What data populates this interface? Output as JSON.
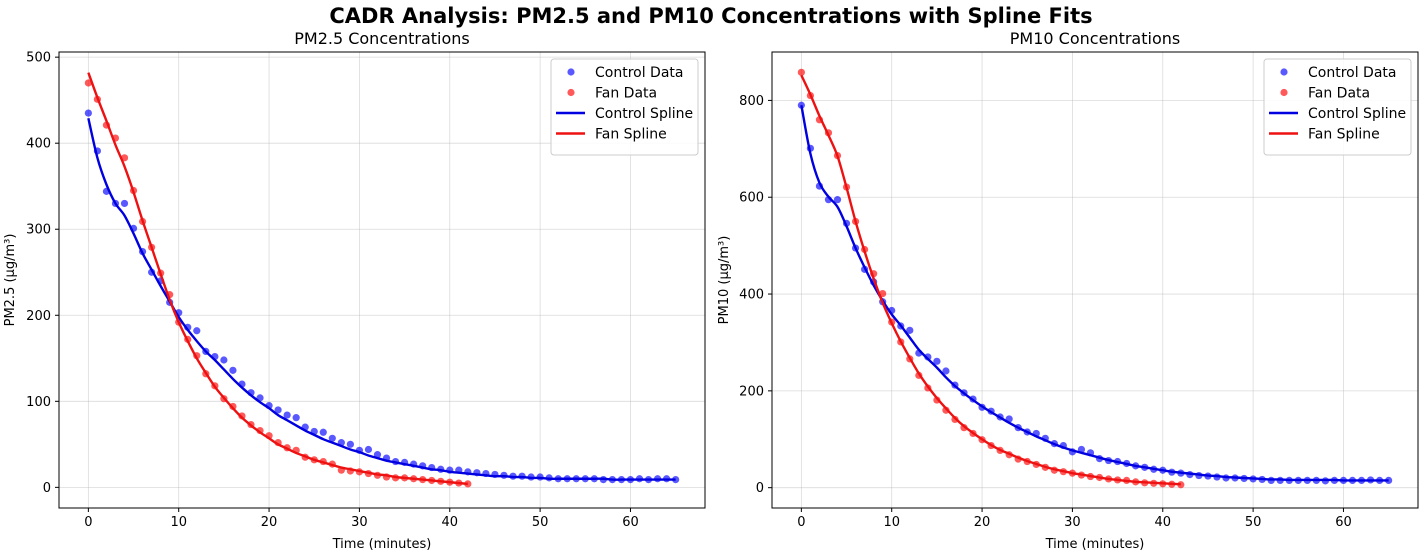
{
  "figure": {
    "suptitle": "CADR Analysis: PM2.5 and PM10 Concentrations with Spline Fits"
  },
  "colors": {
    "control": "#0000ff",
    "fan": "#ff0000",
    "control_line": "#0000e0",
    "fan_line": "#ee1111"
  },
  "chart_data": [
    {
      "type": "scatter",
      "title": "PM2.5 Concentrations",
      "xlabel": "Time (minutes)",
      "ylabel": "PM2.5 (µg/m³)",
      "xlim": [
        -3.25,
        68.25
      ],
      "ylim": [
        -24,
        506
      ],
      "xticks": [
        0,
        10,
        20,
        30,
        40,
        50,
        60
      ],
      "yticks": [
        0,
        100,
        200,
        300,
        400,
        500
      ],
      "grid": true,
      "legend_position": "upper right",
      "legend": [
        "Control Data",
        "Fan Data",
        "Control Spline",
        "Fan Spline"
      ],
      "series": [
        {
          "name": "Control Data",
          "kind": "scatter",
          "color_key": "control",
          "x": [
            0,
            1,
            2,
            3,
            4,
            5,
            6,
            7,
            8,
            9,
            10,
            11,
            12,
            13,
            14,
            15,
            16,
            17,
            18,
            19,
            20,
            21,
            22,
            23,
            24,
            25,
            26,
            27,
            28,
            29,
            30,
            31,
            32,
            33,
            34,
            35,
            36,
            37,
            38,
            39,
            40,
            41,
            42,
            43,
            44,
            45,
            46,
            47,
            48,
            49,
            50,
            51,
            52,
            53,
            54,
            55,
            56,
            57,
            58,
            59,
            60,
            61,
            62,
            63,
            64,
            65
          ],
          "y": [
            435,
            391,
            344,
            330,
            330,
            301,
            274,
            250,
            240,
            215,
            203,
            186,
            182,
            158,
            152,
            148,
            136,
            120,
            110,
            104,
            95,
            90,
            84,
            81,
            70,
            65,
            64,
            57,
            52,
            50,
            43,
            44,
            38,
            34,
            30,
            29,
            27,
            25,
            23,
            21,
            20,
            20,
            18,
            17,
            16,
            15,
            14,
            13,
            13,
            12,
            12,
            11,
            10,
            10,
            10,
            10,
            10,
            9,
            9,
            9,
            9,
            10,
            9,
            10,
            10,
            9
          ]
        },
        {
          "name": "Fan Data",
          "kind": "scatter",
          "color_key": "fan",
          "x": [
            0,
            1,
            2,
            3,
            4,
            5,
            6,
            7,
            8,
            9,
            10,
            11,
            12,
            13,
            14,
            15,
            16,
            17,
            18,
            19,
            20,
            21,
            22,
            23,
            24,
            25,
            26,
            27,
            28,
            29,
            30,
            31,
            32,
            33,
            34,
            35,
            36,
            37,
            38,
            39,
            40,
            41,
            42
          ],
          "y": [
            470,
            451,
            421,
            406,
            383,
            345,
            309,
            279,
            249,
            224,
            192,
            172,
            153,
            132,
            118,
            103,
            94,
            83,
            73,
            66,
            60,
            52,
            46,
            43,
            35,
            32,
            30,
            27,
            20,
            19,
            18,
            16,
            14,
            12,
            11,
            11,
            10,
            9,
            8,
            7,
            6,
            5,
            4
          ]
        },
        {
          "name": "Control Spline",
          "kind": "line",
          "color_key": "control_line",
          "x": [
            0,
            1,
            2,
            3,
            4,
            5,
            6,
            7,
            8,
            9,
            10,
            11,
            12,
            13,
            14,
            15,
            16,
            17,
            18,
            19,
            20,
            21,
            22,
            23,
            24,
            25,
            26,
            27,
            28,
            29,
            30,
            31,
            32,
            33,
            34,
            35,
            36,
            37,
            38,
            39,
            40,
            41,
            42,
            43,
            44,
            45,
            46,
            47,
            48,
            49,
            50,
            51,
            52,
            53,
            54,
            55,
            56,
            57,
            58,
            59,
            60,
            61,
            62,
            63,
            64,
            65
          ],
          "y": [
            429,
            383,
            352,
            330,
            316,
            295,
            272,
            253,
            234,
            216,
            198,
            183,
            170,
            158,
            148,
            137,
            126,
            116,
            107,
            99,
            92,
            84,
            78,
            72,
            66,
            61,
            56,
            52,
            48,
            44,
            41,
            37,
            34,
            31,
            29,
            27,
            25,
            23,
            21,
            20,
            18,
            17,
            16,
            15,
            14,
            13,
            13,
            12,
            12,
            11,
            11,
            10,
            10,
            10,
            10,
            10,
            10,
            10,
            9,
            9,
            9,
            9,
            9,
            9,
            9,
            9
          ]
        },
        {
          "name": "Fan Spline",
          "kind": "line",
          "color_key": "fan_line",
          "x": [
            0,
            1,
            2,
            3,
            4,
            5,
            6,
            7,
            8,
            9,
            10,
            11,
            12,
            13,
            14,
            15,
            16,
            17,
            18,
            19,
            20,
            21,
            22,
            23,
            24,
            25,
            26,
            27,
            28,
            29,
            30,
            31,
            32,
            33,
            34,
            35,
            36,
            37,
            38,
            39,
            40,
            41,
            42
          ],
          "y": [
            482,
            453,
            426,
            398,
            373,
            343,
            310,
            279,
            248,
            218,
            192,
            170,
            150,
            133,
            117,
            104,
            92,
            81,
            72,
            64,
            57,
            50,
            45,
            40,
            36,
            32,
            29,
            26,
            23,
            21,
            19,
            17,
            15,
            14,
            12,
            11,
            10,
            9,
            8,
            7,
            6,
            5,
            4
          ]
        }
      ]
    },
    {
      "type": "scatter",
      "title": "PM10 Concentrations",
      "xlabel": "Time (minutes)",
      "ylabel": "PM10 (µg/m³)",
      "xlim": [
        -3.25,
        68.25
      ],
      "ylim": [
        -42,
        900
      ],
      "xticks": [
        0,
        10,
        20,
        30,
        40,
        50,
        60
      ],
      "yticks": [
        0,
        200,
        400,
        600,
        800
      ],
      "grid": true,
      "legend_position": "upper right",
      "legend": [
        "Control Data",
        "Fan Data",
        "Control Spline",
        "Fan Spline"
      ],
      "series": [
        {
          "name": "Control Data",
          "kind": "scatter",
          "color_key": "control",
          "x": [
            0,
            1,
            2,
            3,
            4,
            5,
            6,
            7,
            8,
            9,
            10,
            11,
            12,
            13,
            14,
            15,
            16,
            17,
            18,
            19,
            20,
            21,
            22,
            23,
            24,
            25,
            26,
            27,
            28,
            29,
            30,
            31,
            32,
            33,
            34,
            35,
            36,
            37,
            38,
            39,
            40,
            41,
            42,
            43,
            44,
            45,
            46,
            47,
            48,
            49,
            50,
            51,
            52,
            53,
            54,
            55,
            56,
            57,
            58,
            59,
            60,
            61,
            62,
            63,
            64,
            65
          ],
          "y": [
            790,
            701,
            623,
            595,
            595,
            546,
            495,
            451,
            425,
            384,
            366,
            334,
            325,
            278,
            270,
            261,
            241,
            212,
            196,
            183,
            166,
            158,
            146,
            142,
            124,
            115,
            112,
            102,
            91,
            87,
            74,
            79,
            72,
            60,
            56,
            54,
            50,
            45,
            42,
            38,
            36,
            32,
            30,
            27,
            25,
            24,
            22,
            20,
            20,
            19,
            18,
            17,
            15,
            15,
            15,
            15,
            15,
            15,
            14,
            15,
            15,
            15,
            15,
            16,
            15,
            15
          ]
        },
        {
          "name": "Fan Data",
          "kind": "scatter",
          "color_key": "fan",
          "x": [
            0,
            1,
            2,
            3,
            4,
            5,
            6,
            7,
            8,
            9,
            10,
            11,
            12,
            13,
            14,
            15,
            16,
            17,
            18,
            19,
            20,
            21,
            22,
            23,
            24,
            25,
            26,
            27,
            28,
            29,
            30,
            31,
            32,
            33,
            34,
            35,
            36,
            37,
            38,
            39,
            40,
            41,
            42
          ],
          "y": [
            858,
            810,
            760,
            733,
            686,
            621,
            550,
            492,
            442,
            401,
            342,
            301,
            266,
            232,
            206,
            181,
            160,
            141,
            124,
            112,
            99,
            87,
            77,
            68,
            59,
            54,
            48,
            42,
            36,
            33,
            30,
            26,
            23,
            21,
            18,
            16,
            15,
            12,
            10,
            9,
            8,
            7,
            6
          ]
        },
        {
          "name": "Control Spline",
          "kind": "line",
          "color_key": "control_line",
          "x": [
            0,
            1,
            2,
            3,
            4,
            5,
            6,
            7,
            8,
            9,
            10,
            11,
            12,
            13,
            14,
            15,
            16,
            17,
            18,
            19,
            20,
            21,
            22,
            23,
            24,
            25,
            26,
            27,
            28,
            29,
            30,
            31,
            32,
            33,
            34,
            35,
            36,
            37,
            38,
            39,
            40,
            41,
            42,
            43,
            44,
            45,
            46,
            47,
            48,
            49,
            50,
            51,
            52,
            53,
            54,
            55,
            56,
            57,
            58,
            59,
            60,
            61,
            62,
            63,
            64,
            65
          ],
          "y": [
            790,
            690,
            630,
            601,
            580,
            540,
            495,
            455,
            418,
            386,
            358,
            335,
            310,
            285,
            266,
            248,
            228,
            210,
            195,
            181,
            168,
            156,
            145,
            134,
            124,
            115,
            106,
            98,
            90,
            83,
            77,
            72,
            67,
            62,
            57,
            53,
            49,
            45,
            42,
            39,
            36,
            33,
            31,
            29,
            27,
            25,
            24,
            22,
            21,
            20,
            19,
            18,
            17,
            17,
            16,
            16,
            16,
            16,
            16,
            16,
            15,
            15,
            15,
            15,
            15,
            15
          ]
        },
        {
          "name": "Fan Spline",
          "kind": "line",
          "color_key": "fan_line",
          "x": [
            0,
            1,
            2,
            3,
            4,
            5,
            6,
            7,
            8,
            9,
            10,
            11,
            12,
            13,
            14,
            15,
            16,
            17,
            18,
            19,
            20,
            21,
            22,
            23,
            24,
            25,
            26,
            27,
            28,
            29,
            30,
            31,
            32,
            33,
            34,
            35,
            36,
            37,
            38,
            39,
            40,
            41,
            42
          ],
          "y": [
            852,
            812,
            768,
            728,
            685,
            620,
            550,
            488,
            432,
            382,
            340,
            302,
            268,
            236,
            209,
            185,
            164,
            144,
            127,
            113,
            100,
            88,
            78,
            70,
            62,
            55,
            49,
            43,
            38,
            34,
            30,
            27,
            24,
            21,
            18,
            16,
            14,
            12,
            11,
            10,
            9,
            8,
            7
          ]
        }
      ]
    }
  ]
}
